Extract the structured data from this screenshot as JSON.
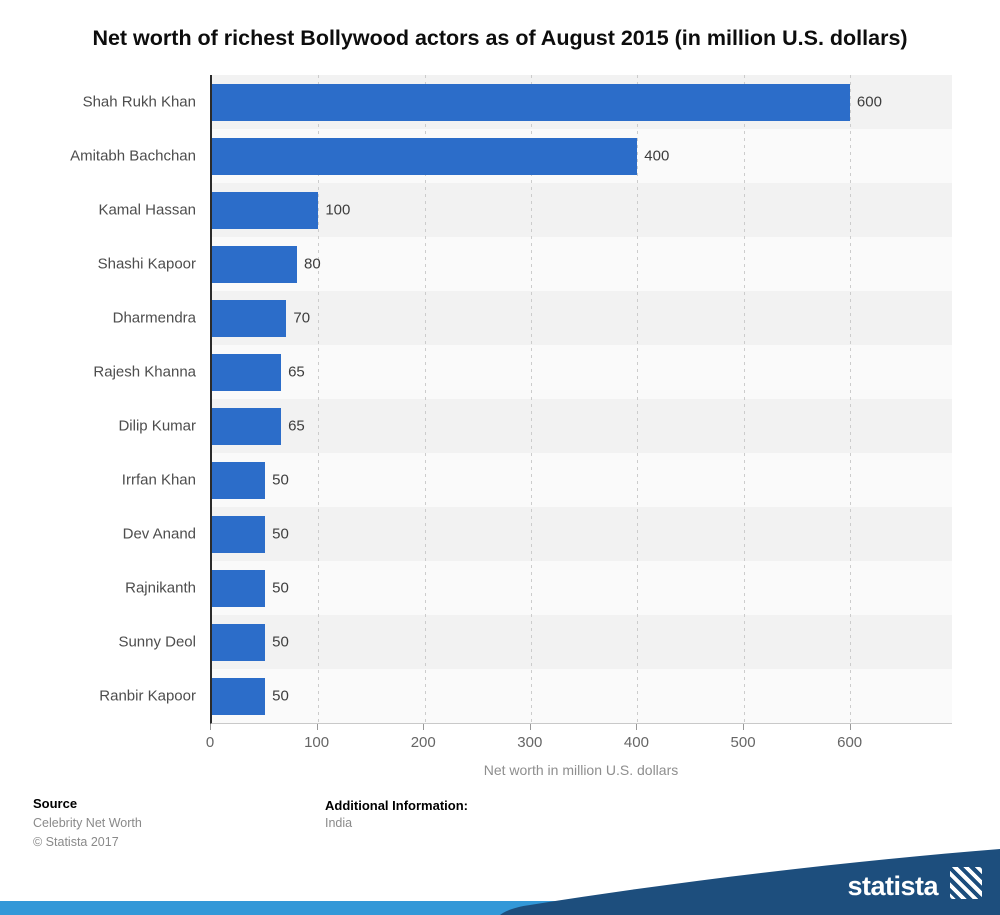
{
  "chart_data": {
    "type": "bar",
    "orientation": "horizontal",
    "title": "Net worth of richest Bollywood actors as of August 2015 (in million U.S. dollars)",
    "categories": [
      "Shah Rukh Khan",
      "Amitabh Bachchan",
      "Kamal Hassan",
      "Shashi Kapoor",
      "Dharmendra",
      "Rajesh Khanna",
      "Dilip Kumar",
      "Irrfan Khan",
      "Dev Anand",
      "Rajnikanth",
      "Sunny Deol",
      "Ranbir Kapoor"
    ],
    "values": [
      600,
      400,
      100,
      80,
      70,
      65,
      65,
      50,
      50,
      50,
      50,
      50
    ],
    "xlabel": "Net worth in million U.S. dollars",
    "xlim": [
      0,
      696
    ],
    "xticks": [
      0,
      100,
      200,
      300,
      400,
      500,
      600
    ],
    "grid": "vertical-dashed",
    "legend": "none"
  },
  "colors": {
    "bar": "#2c6dc9",
    "band_a": "#f2f2f2",
    "band_b": "#fafafa",
    "gridline": "#cccccc",
    "axis_line": "#2b2b2b",
    "ribbon_dark": "#1d4e7d",
    "ribbon_light": "#3398d8"
  },
  "footer": {
    "source_label": "Source",
    "source_line1": "Celebrity Net Worth",
    "source_line2": "© Statista 2017",
    "additional_label": "Additional Information:",
    "additional_value": "India",
    "brand": "statista"
  }
}
